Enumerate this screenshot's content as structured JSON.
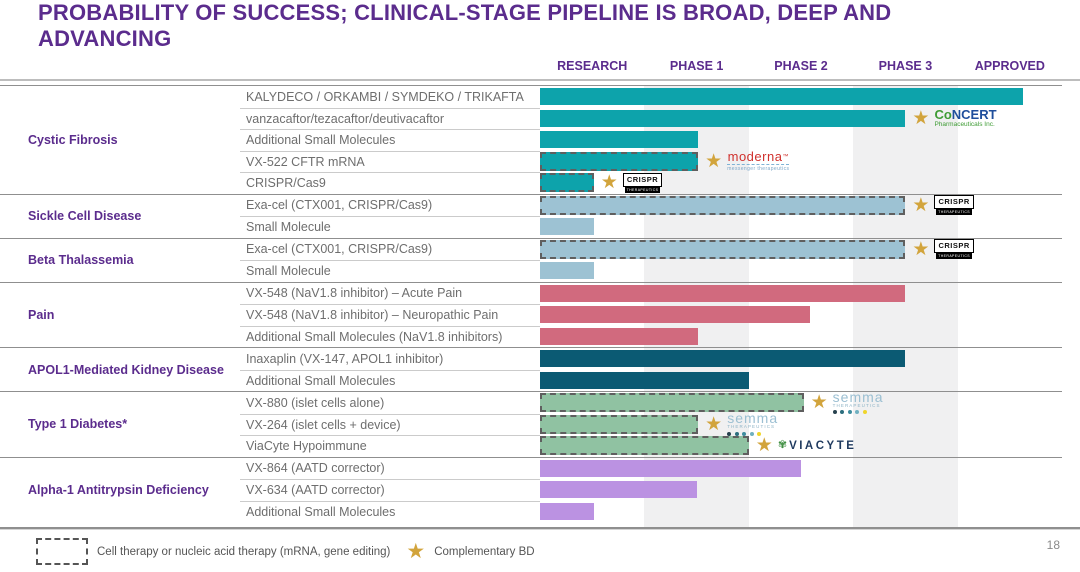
{
  "title": {
    "line1": "PROBABILITY OF SUCCESS; CLINICAL-STAGE PIPELINE IS BROAD, DEEP AND",
    "line2": "ADVANCING"
  },
  "columns": [
    "RESEARCH",
    "PHASE 1",
    "PHASE 2",
    "PHASE 3",
    "APPROVED"
  ],
  "colors": {
    "teal": "#0DA3AB",
    "blue": "#9DC2D3",
    "rose": "#D16A7E",
    "navy": "#0B5A73",
    "green": "#90C2A2",
    "purple": "#BB92E2",
    "gold": "#D2A43C",
    "heading_purple": "#5B2C8D",
    "band_gray": "#F0F0F1"
  },
  "icons": {
    "star": "★",
    "leaf": "✾"
  },
  "groups": [
    {
      "name": "Cystic Fibrosis",
      "rows": [
        {
          "label": "KALYDECO / ORKAMBI / SYMDEKO / TRIKAFTA",
          "color": "teal",
          "end_pct": 92.5,
          "dashed": false,
          "star": false,
          "logo": null
        },
        {
          "label": "vanzacaftor/tezacaftor/deutivacaftor",
          "color": "teal",
          "end_pct": 70,
          "dashed": false,
          "star": true,
          "logo": "concert"
        },
        {
          "label": "Additional Small Molecules",
          "color": "teal",
          "end_pct": 30.3,
          "dashed": false,
          "star": false,
          "logo": null
        },
        {
          "label": "VX-522 CFTR mRNA",
          "color": "teal",
          "end_pct": 30.3,
          "dashed": true,
          "star": true,
          "logo": "moderna"
        },
        {
          "label": "CRISPR/Cas9",
          "color": "teal",
          "end_pct": 10.3,
          "dashed": true,
          "star": true,
          "logo": "crispr"
        }
      ]
    },
    {
      "name": "Sickle Cell Disease",
      "rows": [
        {
          "label": "Exa-cel (CTX001, CRISPR/Cas9)",
          "color": "blue",
          "end_pct": 70,
          "dashed": true,
          "star": true,
          "logo": "crispr"
        },
        {
          "label": "Small Molecule",
          "color": "blue",
          "end_pct": 10.3,
          "dashed": false,
          "star": false,
          "logo": null
        }
      ]
    },
    {
      "name": "Beta Thalassemia",
      "rows": [
        {
          "label": "Exa-cel (CTX001, CRISPR/Cas9)",
          "color": "blue",
          "end_pct": 70,
          "dashed": true,
          "star": true,
          "logo": "crispr"
        },
        {
          "label": "Small Molecule",
          "color": "blue",
          "end_pct": 10.3,
          "dashed": false,
          "star": false,
          "logo": null
        }
      ]
    },
    {
      "name": "Pain",
      "rows": [
        {
          "label": "VX-548 (NaV1.8 inhibitor) – Acute Pain",
          "color": "rose",
          "end_pct": 70,
          "dashed": false,
          "star": false,
          "logo": null
        },
        {
          "label": "VX-548 (NaV1.8 inhibitor) – Neuropathic Pain",
          "color": "rose",
          "end_pct": 51.7,
          "dashed": false,
          "star": false,
          "logo": null
        },
        {
          "label": "Additional Small Molecules (NaV1.8 inhibitors)",
          "color": "rose",
          "end_pct": 30.3,
          "dashed": false,
          "star": false,
          "logo": null
        }
      ]
    },
    {
      "name": "APOL1-Mediated Kidney Disease",
      "rows": [
        {
          "label": "Inaxaplin (VX-147, APOL1 inhibitor)",
          "color": "navy",
          "end_pct": 70,
          "dashed": false,
          "star": false,
          "logo": null
        },
        {
          "label": "Additional Small Molecules",
          "color": "navy",
          "end_pct": 40,
          "dashed": false,
          "star": false,
          "logo": null
        }
      ]
    },
    {
      "name": "Type 1 Diabetes*",
      "rows": [
        {
          "label": "VX-880 (islet cells alone)",
          "color": "green",
          "end_pct": 50.5,
          "dashed": true,
          "star": true,
          "logo": "semma"
        },
        {
          "label": "VX-264 (islet cells + device)",
          "color": "green",
          "end_pct": 30.3,
          "dashed": true,
          "star": true,
          "logo": "semma"
        },
        {
          "label": "ViaCyte Hypoimmune",
          "color": "green",
          "end_pct": 40,
          "dashed": true,
          "star": true,
          "logo": "viacyte"
        }
      ]
    },
    {
      "name": "Alpha-1 Antitrypsin Deficiency",
      "rows": [
        {
          "label": "VX-864 (AATD corrector)",
          "color": "purple",
          "end_pct": 50,
          "dashed": false,
          "star": false,
          "logo": null
        },
        {
          "label": "VX-634 (AATD corrector)",
          "color": "purple",
          "end_pct": 30,
          "dashed": false,
          "star": false,
          "logo": null
        },
        {
          "label": "Additional Small Molecules",
          "color": "purple",
          "end_pct": 10.3,
          "dashed": false,
          "star": false,
          "logo": null
        }
      ]
    }
  ],
  "logos": {
    "concert": {
      "prefix": "Co",
      "suffix": "NCERT",
      "sub": "Pharmaceuticals Inc."
    },
    "moderna": {
      "main": "moderna",
      "tm": "™",
      "sub": "messenger therapeutics"
    },
    "crispr": {
      "main": "CRISPR",
      "sub": "THERAPEUTICS"
    },
    "semma": {
      "main": "semma",
      "sub": "THERAPEUTICS",
      "dots": [
        "#27424E",
        "#2C6E7E",
        "#3E8C9E",
        "#6FB0C0",
        "#EFD52B"
      ]
    },
    "viacyte": {
      "main": "VIACYTE"
    }
  },
  "legend": {
    "dashed_label": "Cell therapy or nucleic acid therapy (mRNA, gene editing)",
    "star_label": "Complementary BD"
  },
  "page_number": "18",
  "chart_data": {
    "type": "bar",
    "orientation": "horizontal",
    "title": "PROBABILITY OF SUCCESS; CLINICAL-STAGE PIPELINE IS BROAD, DEEP AND ADVANCING",
    "stage_categories": [
      "RESEARCH",
      "PHASE 1",
      "PHASE 2",
      "PHASE 3",
      "APPROVED"
    ],
    "value_scale": "progress across stage columns: 0 = start of Research, 5 = end of Approved",
    "xlim": [
      0,
      5
    ],
    "grid": "alternating column shading (Phase 1 and Phase 3 shaded gray)",
    "legend_position": "bottom-left",
    "rows": [
      {
        "group": "Cystic Fibrosis",
        "program": "KALYDECO / ORKAMBI / SYMDEKO / TRIKAFTA",
        "progress": 4.6,
        "cell_or_nucleic_therapy": false,
        "complementary_bd": false,
        "partner": null
      },
      {
        "group": "Cystic Fibrosis",
        "program": "vanzacaftor/tezacaftor/deutivacaftor",
        "progress": 3.5,
        "cell_or_nucleic_therapy": false,
        "complementary_bd": true,
        "partner": "CoNCERT Pharmaceuticals Inc."
      },
      {
        "group": "Cystic Fibrosis",
        "program": "Additional Small Molecules",
        "progress": 1.5,
        "cell_or_nucleic_therapy": false,
        "complementary_bd": false,
        "partner": null
      },
      {
        "group": "Cystic Fibrosis",
        "program": "VX-522 CFTR mRNA",
        "progress": 1.5,
        "cell_or_nucleic_therapy": true,
        "complementary_bd": true,
        "partner": "moderna"
      },
      {
        "group": "Cystic Fibrosis",
        "program": "CRISPR/Cas9",
        "progress": 0.5,
        "cell_or_nucleic_therapy": true,
        "complementary_bd": true,
        "partner": "CRISPR Therapeutics"
      },
      {
        "group": "Sickle Cell Disease",
        "program": "Exa-cel (CTX001, CRISPR/Cas9)",
        "progress": 3.5,
        "cell_or_nucleic_therapy": true,
        "complementary_bd": true,
        "partner": "CRISPR Therapeutics"
      },
      {
        "group": "Sickle Cell Disease",
        "program": "Small Molecule",
        "progress": 0.5,
        "cell_or_nucleic_therapy": false,
        "complementary_bd": false,
        "partner": null
      },
      {
        "group": "Beta Thalassemia",
        "program": "Exa-cel (CTX001, CRISPR/Cas9)",
        "progress": 3.5,
        "cell_or_nucleic_therapy": true,
        "complementary_bd": true,
        "partner": "CRISPR Therapeutics"
      },
      {
        "group": "Beta Thalassemia",
        "program": "Small Molecule",
        "progress": 0.5,
        "cell_or_nucleic_therapy": false,
        "complementary_bd": false,
        "partner": null
      },
      {
        "group": "Pain",
        "program": "VX-548 (NaV1.8 inhibitor) – Acute Pain",
        "progress": 3.5,
        "cell_or_nucleic_therapy": false,
        "complementary_bd": false,
        "partner": null
      },
      {
        "group": "Pain",
        "program": "VX-548 (NaV1.8 inhibitor) – Neuropathic Pain",
        "progress": 2.6,
        "cell_or_nucleic_therapy": false,
        "complementary_bd": false,
        "partner": null
      },
      {
        "group": "Pain",
        "program": "Additional Small Molecules (NaV1.8 inhibitors)",
        "progress": 1.5,
        "cell_or_nucleic_therapy": false,
        "complementary_bd": false,
        "partner": null
      },
      {
        "group": "APOL1-Mediated Kidney Disease",
        "program": "Inaxaplin (VX-147, APOL1 inhibitor)",
        "progress": 3.5,
        "cell_or_nucleic_therapy": false,
        "complementary_bd": false,
        "partner": null
      },
      {
        "group": "APOL1-Mediated Kidney Disease",
        "program": "Additional Small Molecules",
        "progress": 2.0,
        "cell_or_nucleic_therapy": false,
        "complementary_bd": false,
        "partner": null
      },
      {
        "group": "Type 1 Diabetes*",
        "program": "VX-880 (islet cells alone)",
        "progress": 2.5,
        "cell_or_nucleic_therapy": true,
        "complementary_bd": true,
        "partner": "Semma Therapeutics"
      },
      {
        "group": "Type 1 Diabetes*",
        "program": "VX-264 (islet cells + device)",
        "progress": 1.5,
        "cell_or_nucleic_therapy": true,
        "complementary_bd": true,
        "partner": "Semma Therapeutics"
      },
      {
        "group": "Type 1 Diabetes*",
        "program": "ViaCyte Hypoimmune",
        "progress": 2.0,
        "cell_or_nucleic_therapy": true,
        "complementary_bd": true,
        "partner": "ViaCyte"
      },
      {
        "group": "Alpha-1 Antitrypsin Deficiency",
        "program": "VX-864 (AATD corrector)",
        "progress": 2.5,
        "cell_or_nucleic_therapy": false,
        "complementary_bd": false,
        "partner": null
      },
      {
        "group": "Alpha-1 Antitrypsin Deficiency",
        "program": "VX-634 (AATD corrector)",
        "progress": 1.5,
        "cell_or_nucleic_therapy": false,
        "complementary_bd": false,
        "partner": null
      },
      {
        "group": "Alpha-1 Antitrypsin Deficiency",
        "program": "Additional Small Molecules",
        "progress": 0.5,
        "cell_or_nucleic_therapy": false,
        "complementary_bd": false,
        "partner": null
      }
    ]
  }
}
